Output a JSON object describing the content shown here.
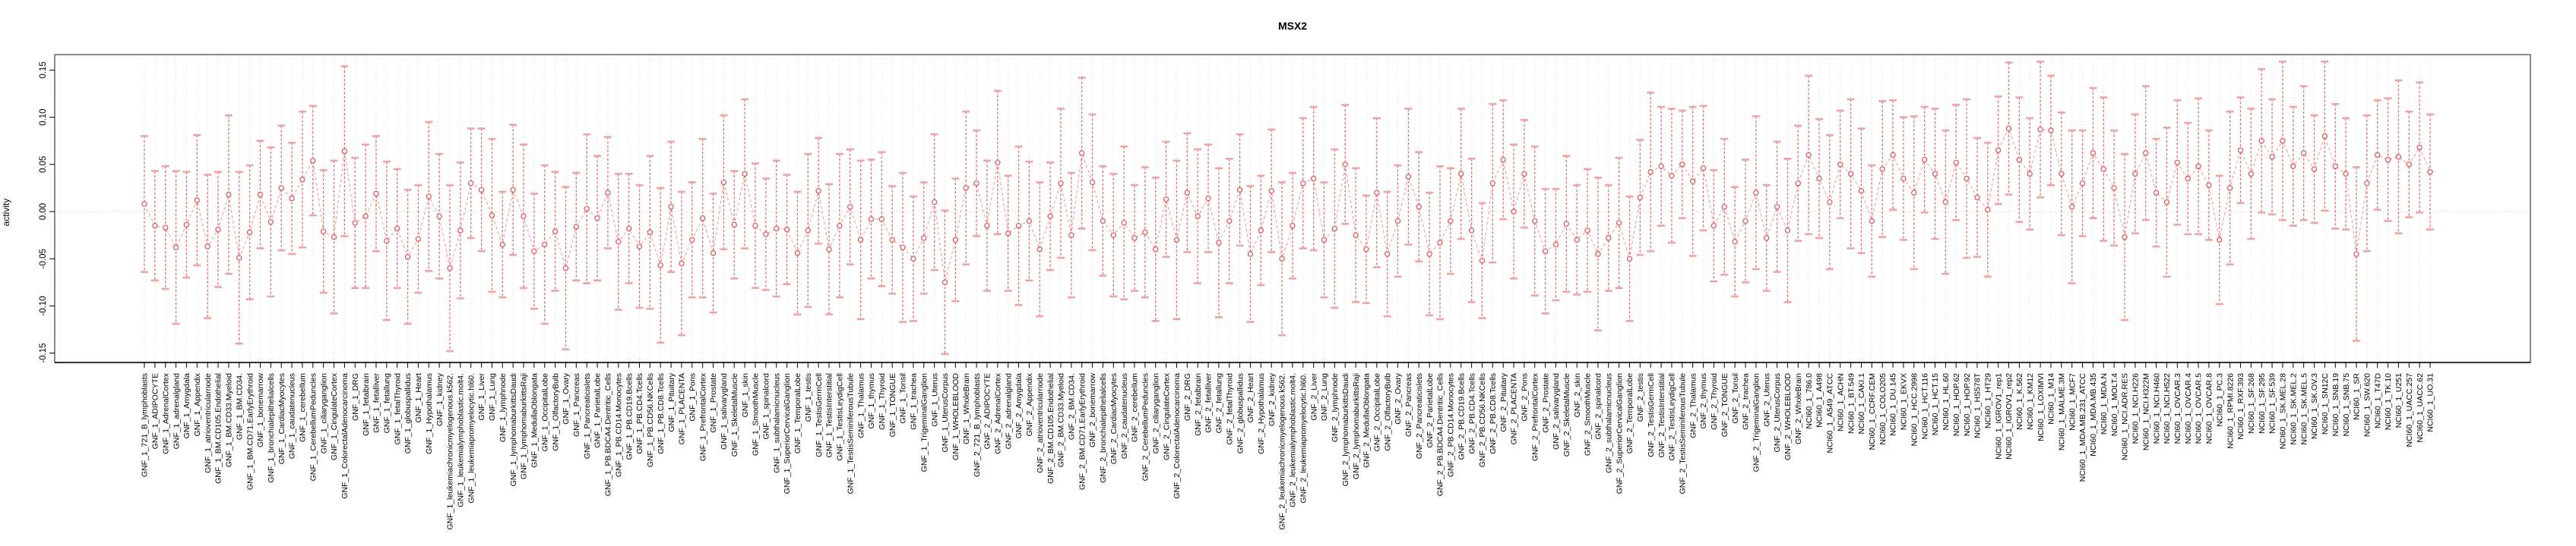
{
  "chart_data": {
    "type": "scatter",
    "subtype": "point-with-error-bars",
    "title": "MSX2",
    "ylabel": "activity",
    "xlabel": "",
    "ytick_labels": [
      "0.15",
      "0.10",
      "0.05",
      "0.00",
      "-0.05",
      "-0.10",
      "-0.15"
    ],
    "ytick_values": [
      0.15,
      0.1,
      0.05,
      0.0,
      -0.05,
      -0.1,
      -0.15
    ],
    "ylim": [
      -0.166,
      0.166
    ],
    "grid": "vertical-dotted-per-category, dotted-zero-line",
    "legend": "none",
    "point_style": "open-circle",
    "error_bar_style": "dashed-stem-with-caps",
    "connector_style": "dashed-line",
    "colors": {
      "point": "#e84f4f",
      "error_bar": "#e84f4f",
      "error_cap": "#f1a2a2",
      "connector": "#ef8a8a",
      "grid": "#d8d8d8",
      "zero_line": "#c9c9c9",
      "box": "#4d4d4d",
      "axis": "#000000",
      "text": "#000000",
      "background": "#ffffff"
    },
    "categories": [
      "GNF_1_721_B_lymphoblasts",
      "GNF_1_ADIPOCYTE",
      "GNF_1_AdrenalCortex",
      "GNF_1_adrenalgland",
      "GNF_1_Amygdala",
      "GNF_1_Appendix",
      "GNF_1_atrioventricularnode",
      "GNF_1_BM.CD105.Endothelial",
      "GNF_1_BM.CD33.Myeloid",
      "GNF_1_BM.CD34.",
      "GNF_1_BM.CD71.EarlyErythroid",
      "GNF_1_bonemarrow",
      "GNF_1_bronchialepithelialcells",
      "GNF_1_CardiacMyocytes",
      "GNF_1_caudatenucleus",
      "GNF_1_cerebellum",
      "GNF_1_CerebellumPeduncles",
      "GNF_1_ciliaryganglion",
      "GNF_1_CingulateCortex",
      "GNF_1_ColorectalAdenocarcinoma",
      "GNF_1_DRG",
      "GNF_1_fetalbrain",
      "GNF_1_fetalliver",
      "GNF_1_fetallung",
      "GNF_1_fetalThyroid",
      "GNF_1_globuspallidus",
      "GNF_1_Heart",
      "GNF_1_Hypothalamus",
      "GNF_1_kidney",
      "GNF_1_leukemiachronicmyelogenous.k562.",
      "GNF_1_leukemialymphoblastic.molt4.",
      "GNF_1_leukemiapromyelocytic.hl60.",
      "GNF_1_Liver",
      "GNF_1_Lung",
      "GNF_1_lymphnode",
      "GNF_1_lymphomaburkittsDaudi",
      "GNF_1_lymphomaburkittsRaji",
      "GNF_1_MedullaOblongata",
      "GNF_1_OccipitalLobe",
      "GNF_1_OlfactoryBulb",
      "GNF_1_Ovary",
      "GNF_1_Pancreas",
      "GNF_1_Pancreaticislets",
      "GNF_1_ParietalLobe",
      "GNF_1_PB.BDCA4.Dentritic_Cells",
      "GNF_1_PB.CD14.Monocytes",
      "GNF_1_PB.CD19.Bcells",
      "GNF_1_PB.CD4.Tcells",
      "GNF_1_PB.CD56.NKCells",
      "GNF_1_PB.CD8.Tcells",
      "GNF_1_Pituitary",
      "GNF_1_PLACENTA",
      "GNF_1_Pons",
      "GNF_1_PrefrontalCortex",
      "GNF_1_Prostate",
      "GNF_1_salivarygland",
      "GNF_1_SkeletalMuscle",
      "GNF_1_skin",
      "GNF_1_SmoothMuscle",
      "GNF_1_spinalcord",
      "GNF_1_subthalamicnucleus",
      "GNF_1_SuperiorCervicalGanglion",
      "GNF_1_TemporalLobe",
      "GNF_1_testis",
      "GNF_1_TestisGermCell",
      "GNF_1_TestisInterstitial",
      "GNF_1_TestisLeydigCell",
      "GNF_1_TestisSeminiferousTubule",
      "GNF_1_Thalamus",
      "GNF_1_thymus",
      "GNF_1_Thyroid",
      "GNF_1_TONGUE",
      "GNF_1_Tonsil",
      "GNF_1_trachea",
      "GNF_1_TrigeminalGanglion",
      "GNF_1_Uterus",
      "GNF_1_UterusCorpus",
      "GNF_1_WHOLEBLOOD",
      "GNF_1_WholeBrain",
      "GNF_2_721_B_lymphoblasts",
      "GNF_2_ADIPOCYTE",
      "GNF_2_AdrenalCortex",
      "GNF_2_adrenalgland",
      "GNF_2_Amygdala",
      "GNF_2_Appendix",
      "GNF_2_atrioventricularnode",
      "GNF_2_BM.CD105.Endothelial",
      "GNF_2_BM.CD33.Myeloid",
      "GNF_2_BM.CD34.",
      "GNF_2_BM.CD71.EarlyErythroid",
      "GNF_2_bonemarrow",
      "GNF_2_bronchialepithelialcells",
      "GNF_2_CardiacMyocytes",
      "GNF_2_caudatenucleus",
      "GNF_2_cerebellum",
      "GNF_2_CerebellumPeduncles",
      "GNF_2_ciliaryganglion",
      "GNF_2_CingulateCortex",
      "GNF_2_ColorectalAdenocarcinoma",
      "GNF_2_DRG",
      "GNF_2_fetalbrain",
      "GNF_2_fetalliver",
      "GNF_2_fetallung",
      "GNF_2_fetalThyroid",
      "GNF_2_globuspallidus",
      "GNF_2_Heart",
      "GNF_2_Hypothalamus",
      "GNF_2_kidney",
      "GNF_2_leukemiachronicmyelogenous.k562.",
      "GNF_2_leukemialymphoblastic.molt4.",
      "GNF_2_leukemiapromyelocytic.hl60.",
      "GNF_2_Liver",
      "GNF_2_Lung",
      "GNF_2_lymphnode",
      "GNF_2_lymphomaburkittsDaudi",
      "GNF_2_lymphomaburkittsRaji",
      "GNF_2_MedullaOblongata",
      "GNF_2_OccipitalLobe",
      "GNF_2_OlfactoryBulb",
      "GNF_2_Ovary",
      "GNF_2_Pancreas",
      "GNF_2_Pancreaticislets",
      "GNF_2_ParietalLobe",
      "GNF_2_PB.BDCA4.Dentritic_Cells",
      "GNF_2_PB.CD14.Monocytes",
      "GNF_2_PB.CD19.Bcells",
      "GNF_2_PB.CD4.Tcells",
      "GNF_2_PB.CD56.NKCells",
      "GNF_2_PB.CD8.Tcells",
      "GNF_2_Pituitary",
      "GNF_2_PLACENTA",
      "GNF_2_Pons",
      "GNF_2_PrefrontalCortex",
      "GNF_2_Prostate",
      "GNF_2_salivarygland",
      "GNF_2_SkeletalMuscle",
      "GNF_2_skin",
      "GNF_2_SmoothMuscle",
      "GNF_2_spinalcord",
      "GNF_2_subthalamicnucleus",
      "GNF_2_SuperiorCervicalGanglion",
      "GNF_2_TemporalLobe",
      "GNF_2_testis",
      "GNF_2_TestisGermCell",
      "GNF_2_TestisInterstitial",
      "GNF_2_TestisLeydigCell",
      "GNF_2_TestisSeminiferousTubule",
      "GNF_2_Thalamus",
      "GNF_2_thymus",
      "GNF_2_Thyroid",
      "GNF_2_TONGUE",
      "GNF_2_Tonsil",
      "GNF_2_trachea",
      "GNF_2_TrigeminalGanglion",
      "GNF_2_Uterus",
      "GNF_2_UterusCorpus",
      "GNF_2_WHOLEBLOOD",
      "GNF_2_WholeBrain",
      "NCI60_1_786.0",
      "NCI60_1_A498",
      "NCI60_1_A549_ATCC",
      "NCI60_1_ACHN",
      "NCI60_1_BT.549",
      "NCI60_1_CAKI.1",
      "NCI60_1_CCRF.CEM",
      "NCI60_1_COLO205",
      "NCI60_1_DU.145",
      "NCI60_1_EKVX",
      "NCI60_1_HCC.2998",
      "NCI60_1_HCT.116",
      "NCI60_1_HCT.15",
      "NCI60_1_HL.60",
      "NCI60_1_HOP.62",
      "NCI60_1_HOP.92",
      "NCI60_1_HS578T",
      "NCI60_1_HT29",
      "NCI60_1_IGROV1_rep1",
      "NCI60_1_IGROV1_rep2",
      "NCI60_1_K.562",
      "NCI60_1_KM12",
      "NCI60_1_LOXIMVI",
      "NCI60_1_M14",
      "NCI60_1_MALME.3M",
      "NCI60_1_MCF7",
      "NCI60_1_MDA.MB.231_ATCC",
      "NCI60_1_MDA.MB.435",
      "NCI60_1_MDA.N",
      "NCI60_1_MOLT.4",
      "NCI60_1_NCI.ADR.RES",
      "NCI60_1_NCI.H226",
      "NCI60_1_NCI.H322M",
      "NCI60_1_NCI.H460",
      "NCI60_1_NCI.H522",
      "NCI60_1_OVCAR.3",
      "NCI60_1_OVCAR.4",
      "NCI60_1_OVCAR.5",
      "NCI60_1_OVCAR.8",
      "NCI60_1_PC.3",
      "NCI60_1_RPMI.8226",
      "NCI60_1_RXF.393",
      "NCI60_1_SF.268",
      "NCI60_1_SF.295",
      "NCI60_1_SF.539",
      "NCI60_1_SK.MEL.28",
      "NCI60_1_SK.MEL.2",
      "NCI60_1_SK.MEL.5",
      "NCI60_1_SK.OV.3",
      "NCI60_1_SN12C",
      "NCI60_1_SNB.19",
      "NCI60_1_SNB.75",
      "NCI60_1_SR",
      "NCI60_1_SW.620",
      "NCI60_1_T47D",
      "NCI60_1_TK.10",
      "NCI60_1_U251",
      "NCI60_1_UACC.257",
      "NCI60_1_UACC.62",
      "NCI60_1_UO.31"
    ],
    "values": [
      0.008,
      -0.015,
      -0.017,
      -0.038,
      -0.014,
      0.012,
      -0.037,
      -0.019,
      0.018,
      -0.049,
      -0.022,
      0.018,
      -0.011,
      0.025,
      0.014,
      0.034,
      0.054,
      -0.021,
      -0.027,
      0.064,
      -0.012,
      -0.005,
      0.019,
      -0.031,
      -0.018,
      -0.048,
      -0.029,
      0.016,
      -0.005,
      -0.06,
      -0.02,
      0.03,
      0.023,
      -0.004,
      -0.035,
      0.023,
      -0.005,
      -0.042,
      -0.035,
      -0.021,
      -0.06,
      -0.016,
      0.003,
      -0.007,
      0.02,
      -0.032,
      -0.018,
      -0.037,
      -0.022,
      -0.057,
      0.005,
      -0.055,
      -0.03,
      -0.007,
      -0.044,
      0.031,
      -0.014,
      0.04,
      -0.015,
      -0.024,
      -0.018,
      -0.019,
      -0.044,
      -0.02,
      0.022,
      -0.04,
      -0.015,
      0.005,
      -0.03,
      -0.008,
      -0.008,
      -0.03,
      -0.038,
      -0.05,
      -0.028,
      0.01,
      -0.075,
      -0.03,
      0.025,
      0.03,
      -0.015,
      0.052,
      -0.023,
      -0.015,
      -0.01,
      -0.04,
      -0.005,
      0.03,
      -0.025,
      0.062,
      0.031,
      -0.01,
      -0.025,
      -0.012,
      -0.028,
      -0.022,
      -0.04,
      0.013,
      -0.03,
      0.02,
      -0.005,
      0.014,
      -0.033,
      -0.01,
      0.023,
      -0.045,
      -0.02,
      0.022,
      -0.05,
      -0.015,
      0.03,
      0.035,
      -0.03,
      -0.018,
      0.05,
      -0.025,
      -0.04,
      0.02,
      -0.045,
      -0.01,
      0.037,
      0.005,
      -0.045,
      -0.033,
      -0.01,
      0.04,
      -0.02,
      -0.052,
      0.03,
      0.055,
      0.0,
      0.04,
      -0.01,
      -0.042,
      -0.035,
      -0.013,
      -0.03,
      -0.02,
      -0.045,
      -0.028,
      -0.012,
      -0.05,
      0.015,
      0.042,
      0.048,
      0.038,
      0.05,
      0.032,
      0.046,
      -0.015,
      0.005,
      -0.032,
      -0.01,
      0.02,
      -0.028,
      0.005,
      -0.02,
      0.03,
      0.06,
      0.035,
      0.01,
      0.05,
      0.04,
      0.022,
      -0.01,
      0.045,
      0.06,
      0.035,
      0.02,
      0.055,
      0.04,
      0.01,
      0.052,
      0.035,
      0.015,
      0.002,
      0.065,
      0.088,
      0.055,
      0.04,
      0.087,
      0.086,
      0.04,
      0.005,
      0.03,
      0.062,
      0.045,
      0.025,
      -0.027,
      0.04,
      0.062,
      0.02,
      0.01,
      0.052,
      0.035,
      0.048,
      0.028,
      -0.03,
      0.025,
      0.065,
      0.04,
      0.075,
      0.058,
      0.075,
      0.048,
      0.062,
      0.045,
      0.08,
      0.048,
      0.04,
      -0.045,
      0.03,
      0.06,
      0.055,
      0.058,
      0.05,
      0.068,
      0.042
    ],
    "errors": [
      0.072,
      0.058,
      0.065,
      0.081,
      0.056,
      0.069,
      0.076,
      0.061,
      0.084,
      0.091,
      0.071,
      0.057,
      0.079,
      0.066,
      0.059,
      0.072,
      0.058,
      0.065,
      0.081,
      0.09,
      0.069,
      0.076,
      0.061,
      0.084,
      0.063,
      0.071,
      0.057,
      0.079,
      0.066,
      0.088,
      0.072,
      0.058,
      0.065,
      0.081,
      0.056,
      0.069,
      0.076,
      0.061,
      0.084,
      0.063,
      0.086,
      0.057,
      0.079,
      0.066,
      0.059,
      0.072,
      0.058,
      0.065,
      0.081,
      0.082,
      0.069,
      0.076,
      0.061,
      0.084,
      0.063,
      0.071,
      0.057,
      0.079,
      0.066,
      0.059,
      0.072,
      0.058,
      0.065,
      0.081,
      0.056,
      0.069,
      0.076,
      0.061,
      0.084,
      0.063,
      0.071,
      0.057,
      0.079,
      0.066,
      0.059,
      0.072,
      0.076,
      0.065,
      0.081,
      0.056,
      0.069,
      0.076,
      0.061,
      0.084,
      0.063,
      0.071,
      0.057,
      0.079,
      0.066,
      0.08,
      0.072,
      0.058,
      0.065,
      0.081,
      0.056,
      0.069,
      0.076,
      0.061,
      0.084,
      0.063,
      0.071,
      0.057,
      0.079,
      0.066,
      0.059,
      0.072,
      0.058,
      0.065,
      0.081,
      0.056,
      0.069,
      0.076,
      0.061,
      0.084,
      0.063,
      0.071,
      0.057,
      0.079,
      0.066,
      0.059,
      0.072,
      0.058,
      0.065,
      0.081,
      0.056,
      0.069,
      0.076,
      0.061,
      0.084,
      0.063,
      0.071,
      0.057,
      0.079,
      0.066,
      0.059,
      0.072,
      0.058,
      0.065,
      0.081,
      0.056,
      0.069,
      0.066,
      0.061,
      0.084,
      0.063,
      0.071,
      0.057,
      0.079,
      0.066,
      0.059,
      0.072,
      0.058,
      0.065,
      0.081,
      0.056,
      0.069,
      0.076,
      0.061,
      0.084,
      0.063,
      0.071,
      0.057,
      0.079,
      0.066,
      0.059,
      0.072,
      0.058,
      0.065,
      0.081,
      0.056,
      0.069,
      0.076,
      0.061,
      0.084,
      0.063,
      0.071,
      0.057,
      0.07,
      0.066,
      0.059,
      0.072,
      0.058,
      0.065,
      0.081,
      0.056,
      0.069,
      0.076,
      0.061,
      0.088,
      0.063,
      0.071,
      0.057,
      0.079,
      0.066,
      0.059,
      0.072,
      0.058,
      0.068,
      0.081,
      0.056,
      0.069,
      0.076,
      0.061,
      0.084,
      0.063,
      0.071,
      0.057,
      0.079,
      0.066,
      0.059,
      0.092,
      0.072,
      0.058,
      0.065,
      0.081,
      0.056,
      0.069,
      0.061
    ]
  }
}
